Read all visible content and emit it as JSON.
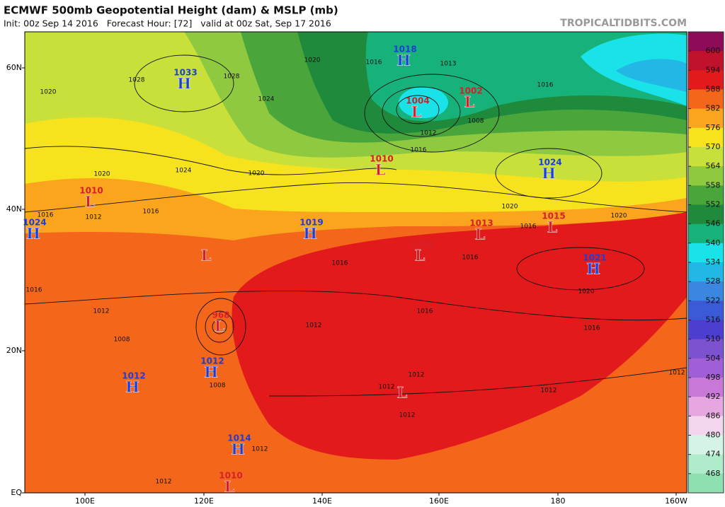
{
  "header": {
    "title": "ECMWF 500mb Geopotential Height (dam) & MSLP (mb)",
    "subtitle": "Init: 00z Sep 14 2016   Forecast Hour: [72]   valid at 00z Sat, Sep 17 2016",
    "watermark": "TROPICALTIDBITS.COM"
  },
  "map": {
    "lat_labels": [
      "60N",
      "40N",
      "20N",
      "EQ"
    ],
    "lon_labels": [
      "100E",
      "120E",
      "140E",
      "160E",
      "180",
      "160W"
    ],
    "centers": [
      {
        "type": "H",
        "value": "1033"
      },
      {
        "type": "H",
        "value": "1018"
      },
      {
        "type": "L",
        "value": "1004"
      },
      {
        "type": "L",
        "value": "1002"
      },
      {
        "type": "L",
        "value": "1010"
      },
      {
        "type": "H",
        "value": "1024"
      },
      {
        "type": "L",
        "value": "1010"
      },
      {
        "type": "H",
        "value": "1024"
      },
      {
        "type": "H",
        "value": "1019"
      },
      {
        "type": "L",
        "value": "1013"
      },
      {
        "type": "L",
        "value": "1015"
      },
      {
        "type": "L",
        "value": "1013"
      },
      {
        "type": "H",
        "value": "1021"
      },
      {
        "type": "L"
      },
      {
        "type": "L",
        "value": "968"
      },
      {
        "type": "H",
        "value": "1012"
      },
      {
        "type": "H",
        "value": "1012"
      },
      {
        "type": "L"
      },
      {
        "type": "H",
        "value": "1014"
      },
      {
        "type": "L",
        "value": "1010"
      }
    ],
    "contour_labels": [
      "1020",
      "1028",
      "1028",
      "1020",
      "1016",
      "1013",
      "1016",
      "1012",
      "1008",
      "1016",
      "1024",
      "1024",
      "1020",
      "1020",
      "1016",
      "1016",
      "1012",
      "1020",
      "1016",
      "1020",
      "1016",
      "1016",
      "1020",
      "1016",
      "1016",
      "1012",
      "1012",
      "1012",
      "1012",
      "1008",
      "1012",
      "1012",
      "1012",
      "1012",
      "1016",
      "1012",
      "1008"
    ]
  },
  "colorbar": {
    "ticks": [
      600,
      594,
      588,
      582,
      576,
      570,
      564,
      558,
      552,
      546,
      540,
      534,
      528,
      522,
      516,
      510,
      504,
      498,
      492,
      486,
      480,
      474,
      468
    ],
    "colors": [
      "#8e0b57",
      "#c0122c",
      "#e31a1c",
      "#f4661a",
      "#fba51e",
      "#f6e21d",
      "#c9df3a",
      "#8fc940",
      "#4aa63a",
      "#1f8a3c",
      "#17b27a",
      "#19e3e8",
      "#23b7e6",
      "#3a86e0",
      "#3a5ad8",
      "#4c3fd0",
      "#7c52d0",
      "#a05fd6",
      "#c879d8",
      "#e6a7e0",
      "#f3d6ee",
      "#d6f4e6",
      "#aeeccc",
      "#8ee0b0"
    ]
  }
}
